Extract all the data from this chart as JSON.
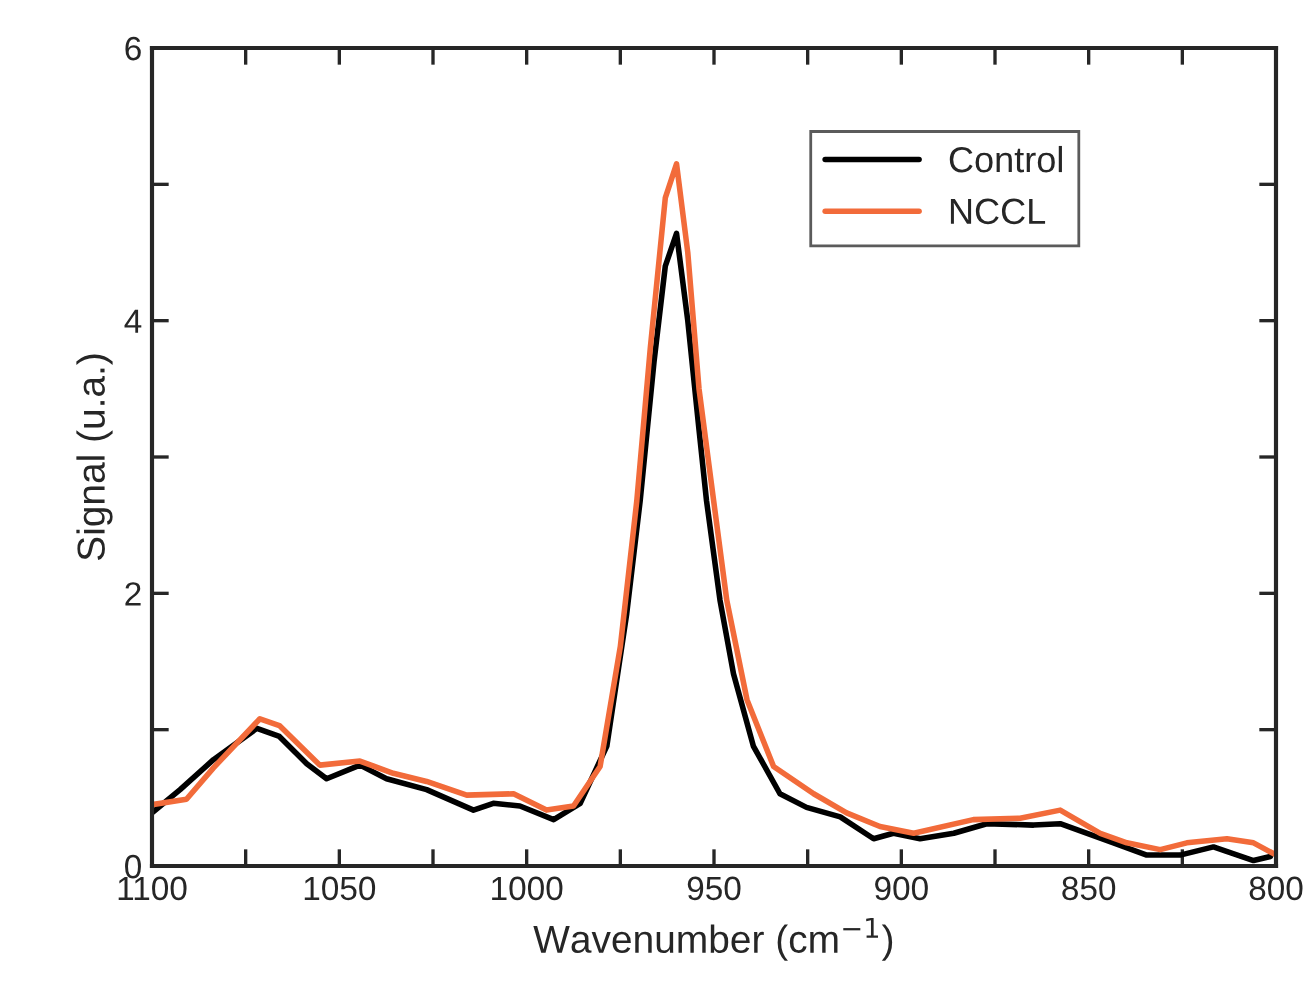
{
  "chart_data": {
    "type": "line",
    "xlabel": "Wavenumber (cm$^{−1}$)",
    "ylabel": "Signal (u.a.)",
    "xlim": [
      1100,
      800
    ],
    "ylim": [
      0,
      6
    ],
    "xticks": [
      1100,
      {
        "value": 1075,
        "label": null
      },
      1050,
      {
        "value": 1025,
        "label": null
      },
      1000,
      {
        "value": 975,
        "label": null
      },
      950,
      {
        "value": 925,
        "label": null
      },
      900,
      {
        "value": 875,
        "label": null
      },
      850,
      {
        "value": 825,
        "label": null
      },
      800
    ],
    "yticks": [
      0,
      {
        "value": 1,
        "label": null
      },
      2,
      {
        "value": 3,
        "label": null
      },
      4,
      {
        "value": 5,
        "label": null
      },
      6
    ],
    "grid": false,
    "legend": "top right",
    "marker": "none",
    "line_style": "solid",
    "series": [
      {
        "name": "Control",
        "color": "#000000",
        "x": [
          1100,
          1092.5,
          1083.6,
          1072,
          1066,
          1058.7,
          1053.4,
          1044.5,
          1037.4,
          1026.7,
          1014.2,
          1008.9,
          1001.8,
          992.8,
          985.7,
          978.6,
          973.3,
          969.7,
          966,
          963,
          960,
          957,
          954,
          952,
          948.4,
          944.8,
          939.5,
          932.4,
          925.3,
          916.3,
          907.4,
          902.1,
          895,
          886,
          877.2,
          864.7,
          857.6,
          843.4,
          834.5,
          825.6,
          816.7,
          806,
          801.5
        ],
        "values": [
          0.39,
          0.56,
          0.78,
          1.01,
          0.95,
          0.75,
          0.64,
          0.74,
          0.64,
          0.56,
          0.41,
          0.46,
          0.44,
          0.34,
          0.46,
          0.88,
          1.85,
          2.68,
          3.7,
          4.4,
          4.64,
          4.0,
          3.2,
          2.68,
          1.95,
          1.41,
          0.88,
          0.53,
          0.43,
          0.36,
          0.2,
          0.24,
          0.2,
          0.24,
          0.31,
          0.3,
          0.31,
          0.17,
          0.08,
          0.08,
          0.14,
          0.04,
          0.07
        ]
      },
      {
        "name": "NCCL",
        "color": "#f26b3a",
        "x": [
          1100,
          1090.8,
          1083.6,
          1071.2,
          1066,
          1055.2,
          1044.5,
          1035.6,
          1026.7,
          1016,
          1003.5,
          994.7,
          987.5,
          980.4,
          975,
          970.6,
          967,
          963,
          960,
          957,
          954,
          950.1,
          946.6,
          941.2,
          934.1,
          923.4,
          914.6,
          905.7,
          896.7,
          880.8,
          868.3,
          857.6,
          846.9,
          839.8,
          830.9,
          823.8,
          813.1,
          806,
          800.6
        ],
        "values": [
          0.45,
          0.49,
          0.72,
          1.08,
          1.03,
          0.74,
          0.77,
          0.68,
          0.62,
          0.52,
          0.53,
          0.41,
          0.44,
          0.73,
          1.61,
          2.68,
          3.8,
          4.9,
          5.15,
          4.5,
          3.5,
          2.68,
          1.95,
          1.22,
          0.73,
          0.53,
          0.39,
          0.29,
          0.24,
          0.34,
          0.35,
          0.41,
          0.24,
          0.17,
          0.12,
          0.17,
          0.2,
          0.17,
          0.09
        ]
      }
    ]
  }
}
